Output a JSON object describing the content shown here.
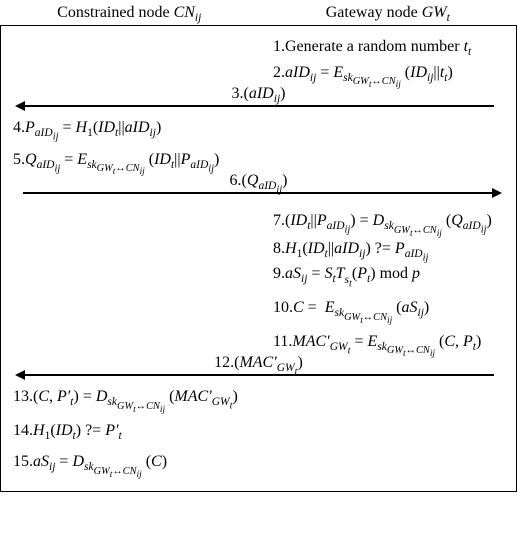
{
  "diagram": {
    "type": "flowchart",
    "background_color": "#ffffff",
    "border_color": "#000000",
    "text_color": "#000000",
    "font_family": "Times New Roman",
    "base_fontsize": 16,
    "header": {
      "left": "Constrained node  <span class=\"it\">CN<sub>ij</sub></span>",
      "right": "Gateway node  <span class=\"it\">GW<sub>t</sub></span>"
    },
    "steps": [
      {
        "n": 1,
        "side": "right",
        "html": "1.Generate a random number  <span class=\"it\">t<sub>t</sub></span>"
      },
      {
        "n": 2,
        "side": "right",
        "html": "2.<span class=\"it\">aID<sub>ij</sub></span> = <span class=\"it\">E<sub>sk<sub>GW<sub>t</sub>↔CN<sub>ij</sub></sub></sub></span> (<span class=\"it\">ID<sub>ij</sub></span>||<span class=\"it\">t<sub>t</sub></span>)"
      },
      {
        "n": 3,
        "side": "arrow-left",
        "html": "3.(<span class=\"it\">aID<sub>ij</sub></span>)"
      },
      {
        "n": 4,
        "side": "left",
        "html": "4.<span class=\"it\">P<sub>aID<sub>ij</sub></sub></span> = <span class=\"it\">H</span><sub>1</sub>(<span class=\"it\">ID<sub>t</sub></span>||<span class=\"it\">aID<sub>ij</sub></span>)"
      },
      {
        "n": 5,
        "side": "left",
        "html": "5.<span class=\"it\">Q<sub>aID<sub>ij</sub></sub></span> = <span class=\"it\">E<sub>sk<sub>GW<sub>t</sub>↔CN<sub>ij</sub></sub></sub></span> (<span class=\"it\">ID<sub>t</sub></span>||<span class=\"it\">P<sub>aID<sub>ij</sub></sub></span>)"
      },
      {
        "n": 6,
        "side": "arrow-right",
        "html": "6.(<span class=\"it\">Q<sub>aID<sub>ij</sub></sub></span>)"
      },
      {
        "n": 7,
        "side": "right",
        "html": "7.(<span class=\"it\">ID<sub>t</sub></span>||<span class=\"it\">P<sub>aID<sub>ij</sub></sub></span>) = <span class=\"it\">D<sub>sk<sub>GW<sub>t</sub>↔CN<sub>ij</sub></sub></sub></span> (<span class=\"it\">Q<sub>aID<sub>ij</sub></sub></span>)"
      },
      {
        "n": 8,
        "side": "right",
        "html": "8.<span class=\"it\">H</span><sub>1</sub>(<span class=\"it\">ID<sub>t</sub></span>||<span class=\"it\">aID<sub>ij</sub></span>) ?= <span class=\"it\">P<sub>aID<sub>ij</sub></sub></span>"
      },
      {
        "n": 9,
        "side": "right",
        "html": "9.<span class=\"it\">aS<sub>ij</sub></span> = <span class=\"it\">S<sub>t</sub>T<sub>s<sub>t</sub></sub></span>(<span class=\"it\">P<sub>t</sub></span>) mod <span class=\"it\">p</span>"
      },
      {
        "n": 10,
        "side": "right",
        "html": "10.<span class=\"it\">C</span> = &nbsp;<span class=\"it\">E<sub>sk<sub>GW<sub>t</sub>↔CN<sub>ij</sub></sub></sub></span> (<span class=\"it\">aS<sub>ij</sub></span>)"
      },
      {
        "n": 11,
        "side": "right",
        "html": "11.<span class=\"it\">MAC′<sub>GW<sub>t</sub></sub></span> = <span class=\"it\">E<sub>sk<sub>GW<sub>t</sub>↔CN<sub>ij</sub></sub></sub></span> (<span class=\"it\">C</span>, <span class=\"it\">P<sub>t</sub></span>)"
      },
      {
        "n": 12,
        "side": "arrow-left",
        "html": "12.(<span class=\"it\">MAC′<sub>GW<sub>t</sub></sub></span>)"
      },
      {
        "n": 13,
        "side": "left",
        "html": "13.(<span class=\"it\">C</span>, <span class=\"it\">P′<sub>t</sub></span>) = <span class=\"it\">D<sub>sk<sub>GW<sub>t</sub>↔CN<sub>ij</sub></sub></sub></span> (<span class=\"it\">MAC′<sub>GW<sub>t</sub></sub></span>)"
      },
      {
        "n": 14,
        "side": "left",
        "html": "14.<span class=\"it\">H</span><sub>1</sub>(<span class=\"it\">ID<sub>t</sub></span>) ?= <span class=\"it\">P′<sub>t</sub></span>"
      },
      {
        "n": 15,
        "side": "left",
        "html": "15.<span class=\"it\">aS<sub>ij</sub></span> = <span class=\"it\">D<sub>sk<sub>GW<sub>t</sub>↔CN<sub>ij</sub></sub></sub></span> (<span class=\"it\">C</span>)"
      }
    ]
  }
}
